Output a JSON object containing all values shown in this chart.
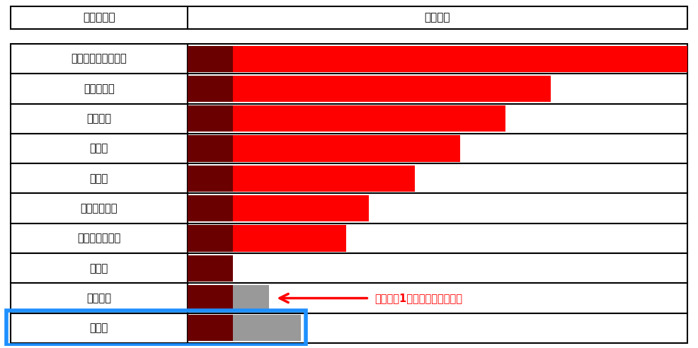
{
  "categories": [
    "弁護士（予備試験）",
    "公認会計士",
    "司法書士",
    "弁理士",
    "税理士",
    "不動産鑑定士",
    "中小企業診断士",
    "社労士",
    "行政書士",
    "宅建士"
  ],
  "col1_header": "資格の種類",
  "col2_header": "勉強時間",
  "dark_red_values": [
    1.0,
    1.0,
    1.0,
    1.0,
    1.0,
    1.0,
    1.0,
    1.0,
    1.0,
    1.0
  ],
  "bright_red_values": [
    10.0,
    7.0,
    6.0,
    5.0,
    4.0,
    3.0,
    2.5,
    0.0,
    0.0,
    0.0
  ],
  "gray_values": [
    0.0,
    0.0,
    0.0,
    0.0,
    0.0,
    0.0,
    0.0,
    0.0,
    0.8,
    1.5
  ],
  "dark_red_color": "#6b0000",
  "bright_red_color": "#ff0000",
  "gray_color": "#999999",
  "annotation_text": "社会人が1年に使える勉強時間",
  "annotation_color": "#ff0000",
  "highlight_color": "#1e90ff",
  "background_color": "#ffffff"
}
